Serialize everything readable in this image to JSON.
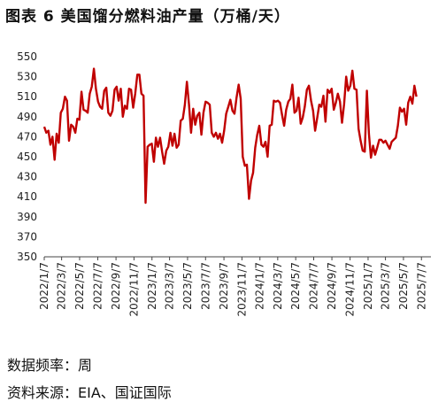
{
  "title": "图表 6 美国馏分燃料油产量（万桶/天）",
  "footer": {
    "frequency": "数据频率：周",
    "source": "资料来源：EIA、国证国际"
  },
  "colors": {
    "line": "#c00000",
    "axis": "#444444"
  },
  "chart_data": {
    "type": "line",
    "title": "",
    "xlabel": "",
    "ylabel": "",
    "ylim": [
      350,
      550
    ],
    "yticks": [
      350,
      370,
      390,
      410,
      430,
      450,
      470,
      490,
      510,
      530,
      550
    ],
    "xlim": [
      0,
      187
    ],
    "x_tick_labels": [
      {
        "label": "2022/1/7",
        "week": 0
      },
      {
        "label": "2022/3/7",
        "week": 8.4
      },
      {
        "label": "2022/5/7",
        "week": 17.1
      },
      {
        "label": "2022/7/7",
        "week": 25.9
      },
      {
        "label": "2022/9/7",
        "week": 34.7
      },
      {
        "label": "2022/11/7",
        "week": 43.4
      },
      {
        "label": "2023/1/7",
        "week": 52.1
      },
      {
        "label": "2023/3/7",
        "week": 60.6
      },
      {
        "label": "2023/5/7",
        "week": 69.3
      },
      {
        "label": "2023/7/7",
        "week": 78.0
      },
      {
        "label": "2023/9/7",
        "week": 86.9
      },
      {
        "label": "2023/11/7",
        "week": 95.6
      },
      {
        "label": "2024/1/7",
        "week": 104.3
      },
      {
        "label": "2024/3/7",
        "week": 112.9
      },
      {
        "label": "2024/5/7",
        "week": 121.6
      },
      {
        "label": "2024/7/7",
        "week": 130.3
      },
      {
        "label": "2024/9/7",
        "week": 139.1
      },
      {
        "label": "2024/11/7",
        "week": 147.9
      },
      {
        "label": "2025/1/7",
        "week": 156.6
      },
      {
        "label": "2025/3/7",
        "week": 165.0
      },
      {
        "label": "2025/5/7",
        "week": 173.7
      },
      {
        "label": "2025/7/7",
        "week": 182.4
      }
    ],
    "series": [
      {
        "name": "",
        "values": [
          480,
          474,
          476,
          462,
          470,
          447,
          473,
          464,
          494,
          498,
          510,
          506,
          466,
          482,
          480,
          474,
          488,
          487,
          515,
          497,
          496,
          494,
          513,
          520,
          538,
          518,
          505,
          500,
          498,
          516,
          519,
          494,
          491,
          496,
          517,
          520,
          506,
          518,
          490,
          501,
          498,
          518,
          517,
          499,
          513,
          532,
          532,
          513,
          511,
          404,
          460,
          462,
          463,
          445,
          469,
          460,
          469,
          455,
          443,
          456,
          460,
          474,
          461,
          473,
          459,
          462,
          486,
          488,
          502,
          525,
          502,
          474,
          498,
          482,
          491,
          494,
          472,
          494,
          505,
          504,
          502,
          474,
          470,
          474,
          468,
          473,
          464,
          476,
          493,
          500,
          507,
          496,
          493,
          509,
          522,
          508,
          450,
          441,
          442,
          408,
          426,
          434,
          459,
          472,
          481,
          462,
          460,
          465,
          450,
          481,
          482,
          506,
          505,
          506,
          504,
          492,
          481,
          497,
          505,
          508,
          522,
          494,
          496,
          509,
          483,
          489,
          500,
          517,
          521,
          506,
          496,
          476,
          489,
          502,
          500,
          511,
          485,
          517,
          514,
          518,
          497,
          504,
          513,
          505,
          484,
          503,
          530,
          516,
          521,
          536,
          518,
          517,
          478,
          466,
          456,
          455,
          516,
          473,
          449,
          461,
          452,
          459,
          467,
          467,
          464,
          466,
          462,
          458,
          465,
          467,
          469,
          481,
          499,
          495,
          498,
          482,
          504,
          510,
          503,
          521,
          510
        ]
      }
    ]
  }
}
